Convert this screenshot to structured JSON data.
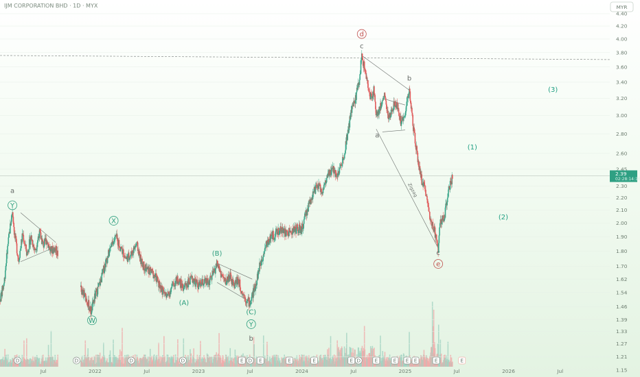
{
  "header": {
    "title": "IJM CORPORATION BHD · 1D · MYX"
  },
  "chart_data": {
    "type": "candlestick",
    "currency": "MYR",
    "y_scale": "log",
    "ylim": [
      1.15,
      4.4
    ],
    "y_ticks": [
      "4.40",
      "4.20",
      "4.00",
      "3.80",
      "3.60",
      "3.40",
      "3.20",
      "3.00",
      "2.80",
      "2.60",
      "2.45",
      "2.30",
      "2.20",
      "2.10",
      "2.00",
      "1.90",
      "1.80",
      "1.70",
      "1.62",
      "1.54",
      "1.46",
      "1.39",
      "1.33",
      "1.27",
      "1.21",
      "1.15"
    ],
    "x_ticks": [
      {
        "label": "Jul",
        "t": 2021.5
      },
      {
        "label": "2022",
        "t": 2022.0
      },
      {
        "label": "Jul",
        "t": 2022.5
      },
      {
        "label": "2023",
        "t": 2023.0
      },
      {
        "label": "Jul",
        "t": 2023.5
      },
      {
        "label": "2024",
        "t": 2024.0
      },
      {
        "label": "Jul",
        "t": 2024.5
      },
      {
        "label": "2025",
        "t": 2025.0
      },
      {
        "label": "Jul",
        "t": 2025.5
      },
      {
        "label": "2026",
        "t": 2026.0
      },
      {
        "label": "Jul",
        "t": 2026.5
      }
    ],
    "xlim": [
      2021.08,
      2026.98
    ],
    "last_price": {
      "value": 2.39,
      "label": "2.39",
      "sublabel": "02:28:14:16"
    },
    "resistance": 3.76,
    "price_path": [
      [
        2021.08,
        1.5
      ],
      [
        2021.12,
        1.6
      ],
      [
        2021.15,
        1.8
      ],
      [
        2021.18,
        1.98
      ],
      [
        2021.2,
        2.1
      ],
      [
        2021.22,
        1.92
      ],
      [
        2021.26,
        1.74
      ],
      [
        2021.3,
        1.92
      ],
      [
        2021.34,
        1.78
      ],
      [
        2021.38,
        1.9
      ],
      [
        2021.42,
        1.8
      ],
      [
        2021.46,
        1.93
      ],
      [
        2021.5,
        1.84
      ],
      [
        2021.53,
        1.88
      ],
      [
        2021.57,
        1.8
      ],
      [
        2021.61,
        1.82
      ],
      [
        2021.64,
        1.78
      ],
      [
        2021.86,
        1.56
      ],
      [
        2021.92,
        1.5
      ],
      [
        2021.96,
        1.43
      ],
      [
        2022.0,
        1.52
      ],
      [
        2022.05,
        1.6
      ],
      [
        2022.1,
        1.72
      ],
      [
        2022.15,
        1.82
      ],
      [
        2022.2,
        1.9
      ],
      [
        2022.25,
        1.82
      ],
      [
        2022.3,
        1.75
      ],
      [
        2022.35,
        1.78
      ],
      [
        2022.4,
        1.85
      ],
      [
        2022.45,
        1.72
      ],
      [
        2022.5,
        1.68
      ],
      [
        2022.55,
        1.66
      ],
      [
        2022.6,
        1.62
      ],
      [
        2022.65,
        1.55
      ],
      [
        2022.7,
        1.52
      ],
      [
        2022.75,
        1.58
      ],
      [
        2022.8,
        1.62
      ],
      [
        2022.85,
        1.57
      ],
      [
        2022.9,
        1.6
      ],
      [
        2022.95,
        1.62
      ],
      [
        2023.0,
        1.58
      ],
      [
        2023.05,
        1.6
      ],
      [
        2023.1,
        1.6
      ],
      [
        2023.15,
        1.66
      ],
      [
        2023.18,
        1.72
      ],
      [
        2023.22,
        1.65
      ],
      [
        2023.26,
        1.6
      ],
      [
        2023.3,
        1.64
      ],
      [
        2023.34,
        1.58
      ],
      [
        2023.38,
        1.62
      ],
      [
        2023.42,
        1.55
      ],
      [
        2023.46,
        1.5
      ],
      [
        2023.5,
        1.48
      ],
      [
        2023.55,
        1.58
      ],
      [
        2023.6,
        1.72
      ],
      [
        2023.65,
        1.84
      ],
      [
        2023.7,
        1.9
      ],
      [
        2023.75,
        1.92
      ],
      [
        2023.8,
        1.96
      ],
      [
        2023.85,
        1.92
      ],
      [
        2023.9,
        1.94
      ],
      [
        2023.95,
        1.96
      ],
      [
        2024.0,
        1.95
      ],
      [
        2024.05,
        2.1
      ],
      [
        2024.1,
        2.22
      ],
      [
        2024.15,
        2.3
      ],
      [
        2024.2,
        2.26
      ],
      [
        2024.25,
        2.38
      ],
      [
        2024.3,
        2.45
      ],
      [
        2024.35,
        2.4
      ],
      [
        2024.4,
        2.55
      ],
      [
        2024.45,
        2.85
      ],
      [
        2024.48,
        3.05
      ],
      [
        2024.52,
        3.2
      ],
      [
        2024.56,
        3.45
      ],
      [
        2024.58,
        3.76
      ],
      [
        2024.62,
        3.5
      ],
      [
        2024.66,
        3.2
      ],
      [
        2024.7,
        3.3
      ],
      [
        2024.72,
        3.0
      ],
      [
        2024.76,
        3.1
      ],
      [
        2024.8,
        3.25
      ],
      [
        2024.84,
        2.95
      ],
      [
        2024.88,
        3.1
      ],
      [
        2024.92,
        3.15
      ],
      [
        2024.96,
        2.92
      ],
      [
        2025.0,
        3.05
      ],
      [
        2025.04,
        3.3
      ],
      [
        2025.08,
        2.85
      ],
      [
        2025.12,
        2.55
      ],
      [
        2025.16,
        2.35
      ],
      [
        2025.2,
        2.25
      ],
      [
        2025.24,
        2.05
      ],
      [
        2025.28,
        1.95
      ],
      [
        2025.32,
        1.82
      ],
      [
        2025.34,
        2.0
      ],
      [
        2025.38,
        2.05
      ],
      [
        2025.42,
        2.25
      ],
      [
        2025.46,
        2.39
      ]
    ],
    "annotations": [
      {
        "text": "a",
        "t": 2021.2,
        "p": 2.24,
        "style": "wave-dark"
      },
      {
        "text": "Y",
        "t": 2021.2,
        "p": 2.12,
        "style": "wave-teal",
        "circle": true
      },
      {
        "text": "X",
        "t": 2022.18,
        "p": 2.0,
        "style": "wave-teal",
        "circle": true
      },
      {
        "text": "W",
        "t": 2021.97,
        "p": 1.375,
        "style": "wave-teal",
        "circle": true
      },
      {
        "text": "(A)",
        "t": 2022.86,
        "p": 1.47,
        "style": "wave-teal"
      },
      {
        "text": "(B)",
        "t": 2023.18,
        "p": 1.77,
        "style": "wave-teal"
      },
      {
        "text": "(C)",
        "t": 2023.51,
        "p": 1.42,
        "style": "wave-teal"
      },
      {
        "text": "Y",
        "t": 2023.51,
        "p": 1.355,
        "style": "wave-teal",
        "circle": true
      },
      {
        "text": "b",
        "t": 2023.51,
        "p": 1.285,
        "style": "wave-dark"
      },
      {
        "text": "d",
        "t": 2024.58,
        "p": 4.04,
        "style": "wave-red",
        "circle": true
      },
      {
        "text": "c",
        "t": 2024.58,
        "p": 3.86,
        "style": "wave-dark"
      },
      {
        "text": "b",
        "t": 2025.04,
        "p": 3.42,
        "style": "wave-dark"
      },
      {
        "text": "a",
        "t": 2024.73,
        "p": 2.76,
        "style": "wave-dark"
      },
      {
        "text": "c",
        "t": 2025.32,
        "p": 1.775,
        "style": "wave-dark"
      },
      {
        "text": "e",
        "t": 2025.32,
        "p": 1.7,
        "style": "wave-red",
        "circle": true
      },
      {
        "text": "(1)",
        "t": 2025.65,
        "p": 2.64,
        "style": "wave-proj"
      },
      {
        "text": "(2)",
        "t": 2025.95,
        "p": 2.03,
        "style": "wave-proj"
      },
      {
        "text": "(3)",
        "t": 2026.43,
        "p": 3.28,
        "style": "wave-proj"
      }
    ],
    "trendlines": [
      {
        "name": "triangle-2021-upper",
        "points": [
          [
            2021.28,
            2.08
          ],
          [
            2021.62,
            1.86
          ]
        ]
      },
      {
        "name": "triangle-2021-lower",
        "points": [
          [
            2021.28,
            1.73
          ],
          [
            2021.62,
            1.83
          ]
        ]
      },
      {
        "name": "triangle-2023-upper",
        "points": [
          [
            2023.18,
            1.72
          ],
          [
            2023.52,
            1.62
          ]
        ]
      },
      {
        "name": "triangle-2023-lower",
        "points": [
          [
            2023.18,
            1.6
          ],
          [
            2023.52,
            1.48
          ]
        ]
      },
      {
        "name": "diag-c-to-b",
        "points": [
          [
            2024.58,
            3.76
          ],
          [
            2025.04,
            3.3
          ]
        ]
      },
      {
        "name": "diag-a-to-e",
        "points": [
          [
            2024.72,
            2.85
          ],
          [
            2025.32,
            1.82
          ]
        ]
      },
      {
        "name": "triangle-2024-upper",
        "points": [
          [
            2024.78,
            3.2
          ],
          [
            2025.0,
            3.12
          ]
        ]
      },
      {
        "name": "triangle-2024-lower",
        "points": [
          [
            2024.78,
            2.82
          ],
          [
            2025.0,
            2.84
          ]
        ]
      }
    ],
    "diagonal_label": {
      "text": "Zigzag",
      "t": 2025.06,
      "p": 2.26
    },
    "event_markers": [
      {
        "t": 2021.25,
        "type": "D"
      },
      {
        "t": 2021.82,
        "type": "D"
      },
      {
        "t": 2022.35,
        "type": "D"
      },
      {
        "t": 2022.85,
        "type": "D"
      },
      {
        "t": 2023.42,
        "type": "E"
      },
      {
        "t": 2023.5,
        "type": "D"
      },
      {
        "t": 2023.6,
        "type": "E"
      },
      {
        "t": 2023.88,
        "type": "E"
      },
      {
        "t": 2024.12,
        "type": "E"
      },
      {
        "t": 2024.48,
        "type": "E"
      },
      {
        "t": 2024.55,
        "type": "D"
      },
      {
        "t": 2024.72,
        "type": "E"
      },
      {
        "t": 2024.9,
        "type": "E"
      },
      {
        "t": 2025.02,
        "type": "E"
      },
      {
        "t": 2025.1,
        "type": "E"
      },
      {
        "t": 2025.3,
        "type": "E"
      },
      {
        "t": 2025.55,
        "type": "E",
        "faded": true
      }
    ]
  }
}
